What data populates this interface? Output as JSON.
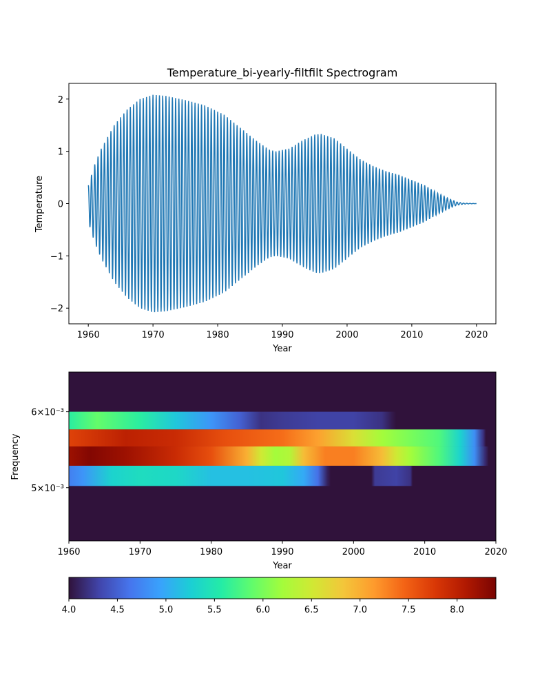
{
  "figure_title": "Temperature_bi-yearly-filtfilt Spectrogram",
  "chart_data": [
    {
      "type": "line",
      "title": "Temperature_bi-yearly-filtfilt Spectrogram",
      "xlabel": "Year",
      "ylabel": "Temperature",
      "xlim": [
        1957,
        2023
      ],
      "ylim": [
        -2.3,
        2.3
      ],
      "x_ticks": [
        1960,
        1970,
        1980,
        1990,
        2000,
        2010,
        2020
      ],
      "x_tick_labels": [
        "1960",
        "1970",
        "1980",
        "1990",
        "2000",
        "2010",
        "2020"
      ],
      "y_ticks": [
        2,
        1,
        0,
        -1,
        -2
      ],
      "y_tick_labels": [
        "2",
        "1",
        "0",
        "−1",
        "−2"
      ],
      "grid": false,
      "line_color": "#1f77b4",
      "series": [
        {
          "x_start": 1960,
          "x_end": 2020,
          "period_years": 0.5,
          "envelope": [
            [
              1960,
              0.35
            ],
            [
              1961,
              0.75
            ],
            [
              1962,
              1.05
            ],
            [
              1964,
              1.5
            ],
            [
              1966,
              1.8
            ],
            [
              1968,
              2.0
            ],
            [
              1970,
              2.08
            ],
            [
              1972,
              2.06
            ],
            [
              1975,
              1.98
            ],
            [
              1978,
              1.88
            ],
            [
              1981,
              1.7
            ],
            [
              1984,
              1.4
            ],
            [
              1986,
              1.2
            ],
            [
              1988,
              1.03
            ],
            [
              1989,
              1.0
            ],
            [
              1991,
              1.05
            ],
            [
              1993,
              1.2
            ],
            [
              1995,
              1.32
            ],
            [
              1996,
              1.33
            ],
            [
              1998,
              1.25
            ],
            [
              2000,
              1.05
            ],
            [
              2002,
              0.85
            ],
            [
              2004,
              0.72
            ],
            [
              2006,
              0.62
            ],
            [
              2008,
              0.55
            ],
            [
              2010,
              0.45
            ],
            [
              2012,
              0.35
            ],
            [
              2014,
              0.2
            ],
            [
              2016,
              0.08
            ],
            [
              2017,
              0.03
            ],
            [
              2018,
              0.01
            ],
            [
              2020,
              0.0
            ]
          ]
        }
      ]
    },
    {
      "type": "heatmap",
      "xlabel": "Year",
      "ylabel": "Frequency",
      "xlim": [
        1960,
        2020
      ],
      "x_ticks": [
        1960,
        1970,
        1980,
        1990,
        2000,
        2010,
        2020
      ],
      "x_tick_labels": [
        "1960",
        "1970",
        "1980",
        "1990",
        "2000",
        "2010",
        "2020"
      ],
      "y_scale": "log",
      "ylim": [
        0.0044,
        0.0066
      ],
      "y_ticks": [
        0.006,
        0.005
      ],
      "y_tick_labels": [
        "6×10⁻³",
        "5×10⁻³"
      ],
      "background_value": 4.0,
      "rows": [
        {
          "f_low": 0.00575,
          "f_high": 0.006,
          "stops": [
            [
              1960,
              5.6
            ],
            [
              1964,
              5.9
            ],
            [
              1970,
              5.6
            ],
            [
              1975,
              5.2
            ],
            [
              1980,
              4.85
            ],
            [
              1984,
              4.5
            ],
            [
              1987,
              4.2
            ],
            [
              1990,
              4.25
            ],
            [
              1995,
              4.3
            ],
            [
              2000,
              4.3
            ],
            [
              2004,
              4.2
            ],
            [
              2005.4,
              4.05
            ],
            [
              2006,
              4.0
            ]
          ]
        },
        {
          "f_low": 0.00552,
          "f_high": 0.00575,
          "stops": [
            [
              1960,
              7.7
            ],
            [
              1968,
              8.0
            ],
            [
              1975,
              7.9
            ],
            [
              1982,
              7.6
            ],
            [
              1990,
              7.4
            ],
            [
              1995,
              7.1
            ],
            [
              2000,
              6.6
            ],
            [
              2004,
              6.2
            ],
            [
              2008,
              6.0
            ],
            [
              2012,
              5.8
            ],
            [
              2015,
              5.3
            ],
            [
              2017,
              4.8
            ],
            [
              2018.2,
              4.2
            ],
            [
              2018.6,
              4.0
            ]
          ]
        },
        {
          "f_low": 0.00527,
          "f_high": 0.00552,
          "stops": [
            [
              1960,
              8.2
            ],
            [
              1963,
              8.35
            ],
            [
              1968,
              8.2
            ],
            [
              1975,
              7.9
            ],
            [
              1980,
              7.6
            ],
            [
              1985,
              7.0
            ],
            [
              1987,
              6.5
            ],
            [
              1989,
              6.2
            ],
            [
              1991,
              6.3
            ],
            [
              1993,
              6.9
            ],
            [
              1996,
              7.3
            ],
            [
              2000,
              7.3
            ],
            [
              2004,
              6.9
            ],
            [
              2006,
              6.5
            ],
            [
              2008,
              6.2
            ],
            [
              2012,
              5.8
            ],
            [
              2015,
              5.3
            ],
            [
              2017,
              4.8
            ],
            [
              2018.5,
              4.15
            ],
            [
              2019,
              4.0
            ]
          ]
        },
        {
          "f_low": 0.00502,
          "f_high": 0.00527,
          "stops": [
            [
              1960,
              4.7
            ],
            [
              1962,
              4.85
            ],
            [
              1966,
              5.3
            ],
            [
              1970,
              5.4
            ],
            [
              1975,
              5.35
            ],
            [
              1980,
              5.15
            ],
            [
              1985,
              5.15
            ],
            [
              1990,
              5.2
            ],
            [
              1993,
              5.0
            ],
            [
              1995,
              4.6
            ],
            [
              1996.3,
              4.1
            ],
            [
              1996.8,
              4.0
            ],
            [
              2002.5,
              4.0
            ],
            [
              2003,
              4.25
            ],
            [
              2006,
              4.3
            ],
            [
              2008,
              4.2
            ],
            [
              2008.3,
              4.0
            ]
          ]
        }
      ]
    },
    {
      "type": "colorbar",
      "range": [
        4.0,
        8.4
      ],
      "ticks": [
        4.0,
        4.5,
        5.0,
        5.5,
        6.0,
        6.5,
        7.0,
        7.5,
        8.0
      ],
      "tick_labels": [
        "4.0",
        "4.5",
        "5.0",
        "5.5",
        "6.0",
        "6.5",
        "7.0",
        "7.5",
        "8.0"
      ],
      "colormap": "turbo",
      "colormap_stops": [
        "#30123b",
        "#4145ab",
        "#4675ed",
        "#39a2fc",
        "#1bcfd4",
        "#24eca6",
        "#61fc6c",
        "#a4fc3b",
        "#d1e834",
        "#f3c63a",
        "#fe9b2d",
        "#f36315",
        "#d93806",
        "#b11901",
        "#7a0402"
      ]
    }
  ]
}
